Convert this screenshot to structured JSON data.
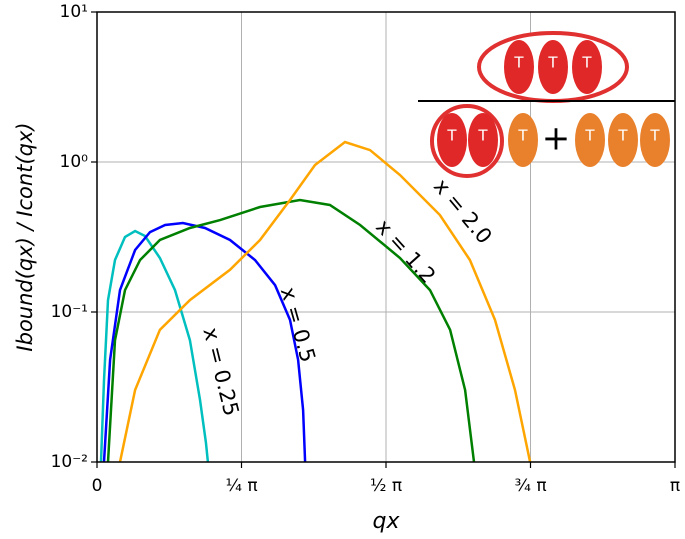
{
  "chart_data": {
    "type": "line",
    "xlabel": "qx",
    "ylabel": "Ibound(qx) / Icont(qx)",
    "xlim": [
      0,
      3.1416
    ],
    "ylim": [
      0.01,
      10
    ],
    "log_y": true,
    "grid": true,
    "xticks": [
      0,
      {
        "value": 0.7854,
        "label": "¼ π"
      },
      {
        "value": 1.5708,
        "label": "½ π"
      },
      {
        "value": 2.3562,
        "label": "¾ π"
      },
      {
        "value": 3.1416,
        "label": "π"
      }
    ],
    "yticks": [
      {
        "value": 0.01,
        "label": "10⁻²"
      },
      {
        "value": 0.1,
        "label": "10⁻¹"
      },
      {
        "value": 1,
        "label": "10⁰"
      },
      {
        "value": 10,
        "label": "10¹"
      }
    ],
    "series": [
      {
        "name": "x = 0.25",
        "color": "#00bfbf",
        "x": [
          0.0217,
          0.038,
          0.06,
          0.098,
          0.152,
          0.207,
          0.261,
          0.342,
          0.424,
          0.505,
          0.56,
          0.592,
          0.603
        ],
        "values": [
          0.01,
          0.035,
          0.12,
          0.222,
          0.316,
          0.347,
          0.321,
          0.229,
          0.14,
          0.065,
          0.026,
          0.0135,
          0.01
        ]
      },
      {
        "name": "x = 0.5",
        "color": "#0000ff",
        "x": [
          0.038,
          0.071,
          0.125,
          0.207,
          0.288,
          0.37,
          0.467,
          0.587,
          0.723,
          0.859,
          0.968,
          1.049,
          1.093,
          1.12,
          1.131
        ],
        "values": [
          0.01,
          0.048,
          0.14,
          0.259,
          0.341,
          0.38,
          0.392,
          0.363,
          0.302,
          0.222,
          0.151,
          0.0886,
          0.048,
          0.0222,
          0.01
        ]
      },
      {
        "name": "x = 1.2",
        "color": "#008000",
        "x": [
          0.06,
          0.098,
          0.152,
          0.234,
          0.342,
          0.505,
          0.669,
          0.886,
          1.103,
          1.266,
          1.43,
          1.647,
          1.81,
          1.919,
          2.001,
          2.049
        ],
        "values": [
          0.01,
          0.0649,
          0.14,
          0.222,
          0.302,
          0.363,
          0.41,
          0.501,
          0.558,
          0.517,
          0.38,
          0.229,
          0.14,
          0.0761,
          0.0302,
          0.01
        ]
      },
      {
        "name": "x = 2.0",
        "color": "#ffa500",
        "x": [
          0.125,
          0.207,
          0.342,
          0.505,
          0.723,
          0.886,
          1.049,
          1.185,
          1.348,
          1.484,
          1.647,
          1.864,
          2.027,
          2.163,
          2.272,
          2.354
        ],
        "values": [
          0.01,
          0.0302,
          0.0761,
          0.12,
          0.191,
          0.302,
          0.558,
          0.955,
          1.36,
          1.2,
          0.819,
          0.443,
          0.222,
          0.0886,
          0.0302,
          0.01
        ]
      }
    ],
    "inset": {
      "letter": "T",
      "operator": "+"
    }
  }
}
